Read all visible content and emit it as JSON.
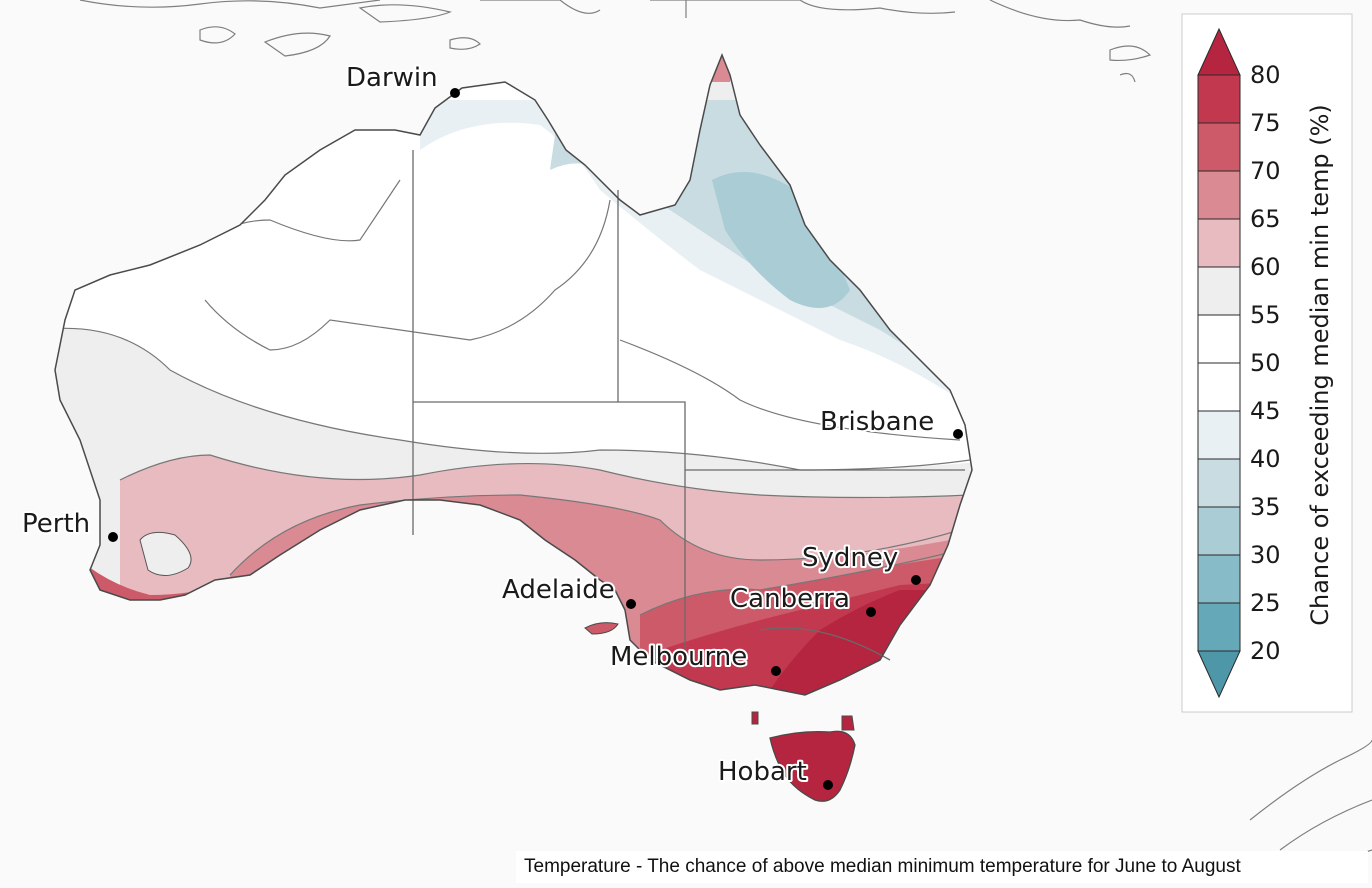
{
  "map": {
    "cities": [
      {
        "id": "darwin",
        "name": "Darwin"
      },
      {
        "id": "brisbane",
        "name": "Brisbane"
      },
      {
        "id": "perth",
        "name": "Perth"
      },
      {
        "id": "sydney",
        "name": "Sydney"
      },
      {
        "id": "adelaide",
        "name": "Adelaide"
      },
      {
        "id": "canberra",
        "name": "Canberra"
      },
      {
        "id": "melbourne",
        "name": "Melbourne"
      },
      {
        "id": "hobart",
        "name": "Hobart"
      }
    ]
  },
  "legend": {
    "title": "Chance of exceeding median min temp (%)",
    "ticks": [
      "80",
      "75",
      "70",
      "65",
      "60",
      "55",
      "50",
      "45",
      "40",
      "35",
      "30",
      "25",
      "20"
    ],
    "bands": [
      {
        "range": ">80",
        "color": "#b5253f"
      },
      {
        "range": "75-80",
        "color": "#c1384f"
      },
      {
        "range": "70-75",
        "color": "#cd5a68"
      },
      {
        "range": "65-70",
        "color": "#d98a92"
      },
      {
        "range": "60-65",
        "color": "#e8bbc0"
      },
      {
        "range": "55-60",
        "color": "#eeeeee"
      },
      {
        "range": "50-55",
        "color": "#ffffff"
      },
      {
        "range": "45-50",
        "color": "#ffffff"
      },
      {
        "range": "40-45",
        "color": "#e8f0f3"
      },
      {
        "range": "35-40",
        "color": "#c9dce2"
      },
      {
        "range": "30-35",
        "color": "#a9ccd5"
      },
      {
        "range": "25-30",
        "color": "#88bbc8"
      },
      {
        "range": "20-25",
        "color": "#65a8b8"
      },
      {
        "range": "<20",
        "color": "#4e97a8"
      }
    ]
  },
  "caption": "Temperature - The chance of above median minimum temperature for June to August"
}
